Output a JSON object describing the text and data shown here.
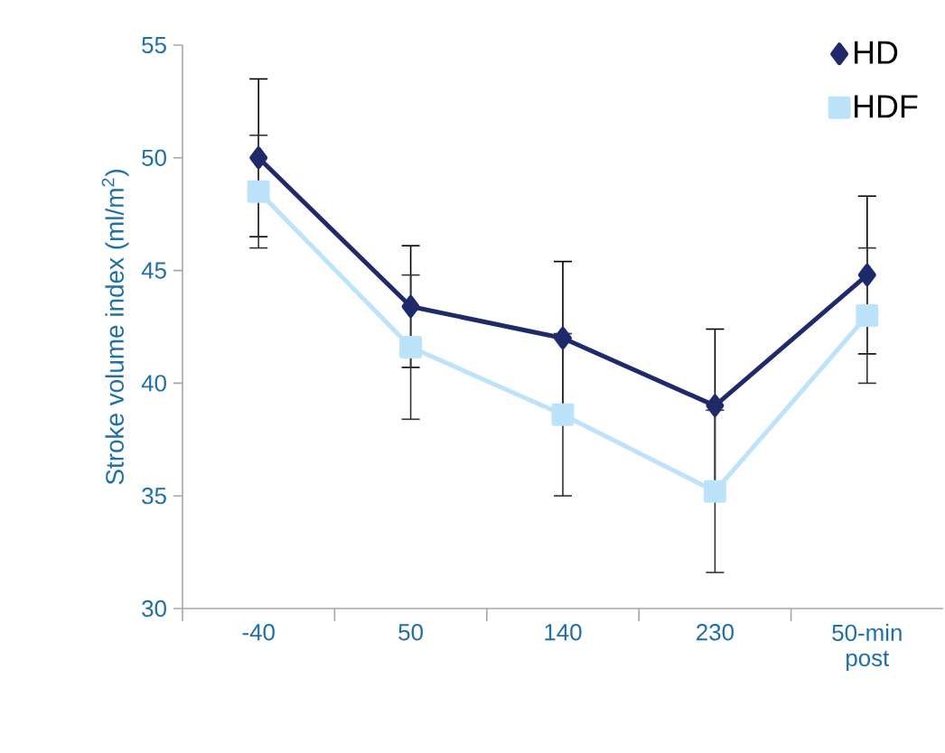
{
  "chart_data": {
    "type": "line",
    "ylabel": "Stroke volume index (ml/m$^{2}$)",
    "categories": [
      "-40",
      "50",
      "140",
      "230",
      "50-min post"
    ],
    "series": [
      {
        "name": "HD",
        "color": "#1f2a6b",
        "marker": "diamond",
        "values": [
          50,
          43.4,
          42,
          39,
          44.8
        ],
        "errors": [
          3.5,
          2.7,
          3.4,
          3.4,
          3.5
        ]
      },
      {
        "name": "HDF",
        "color": "#bde3fb",
        "marker": "square",
        "values": [
          48.5,
          41.6,
          38.6,
          35.2,
          43
        ],
        "errors": [
          2.5,
          3.2,
          3.6,
          3.6,
          3
        ]
      }
    ],
    "ylim": [
      30,
      55
    ],
    "yticks": [
      30,
      35,
      40,
      45,
      50,
      55
    ],
    "grid": false,
    "legend": "top right"
  }
}
